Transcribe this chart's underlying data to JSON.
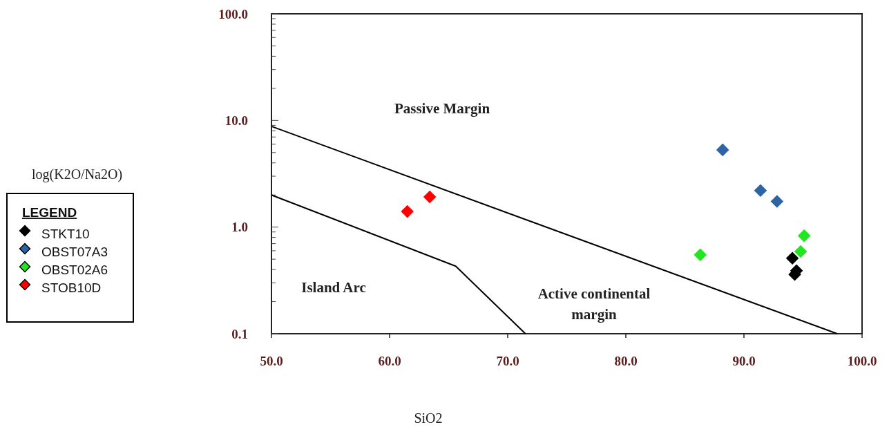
{
  "chart_data": {
    "type": "scatter",
    "xlabel": "SiO2",
    "legend_title": "LEGEND",
    "legend": "left",
    "marker": "diamond",
    "log": "y",
    "grid": false,
    "xlim": [
      50,
      100
    ],
    "xticks": [
      {
        "value": 50,
        "label": "50.0"
      },
      {
        "value": 60,
        "label": "60.0"
      },
      {
        "value": 70,
        "label": "70.0"
      },
      {
        "value": 80,
        "label": "80.0"
      },
      {
        "value": 90,
        "label": "90.0"
      },
      {
        "value": 100,
        "label": "100.0"
      }
    ],
    "ylim": [
      0.1,
      100
    ],
    "yticks": [
      {
        "value": 0.1,
        "label": "0.1"
      },
      {
        "value": 0.2,
        "label": null
      },
      {
        "value": 0.3,
        "label": null
      },
      {
        "value": 0.4,
        "label": null
      },
      {
        "value": 0.5,
        "label": null
      },
      {
        "value": 0.6,
        "label": null
      },
      {
        "value": 0.7,
        "label": null
      },
      {
        "value": 0.8,
        "label": null
      },
      {
        "value": 0.9,
        "label": null
      },
      {
        "value": 1,
        "label": "1.0"
      },
      {
        "value": 2,
        "label": null
      },
      {
        "value": 3,
        "label": null
      },
      {
        "value": 4,
        "label": null
      },
      {
        "value": 5,
        "label": null
      },
      {
        "value": 6,
        "label": null
      },
      {
        "value": 7,
        "label": null
      },
      {
        "value": 8,
        "label": null
      },
      {
        "value": 9,
        "label": null
      },
      {
        "value": 10,
        "label": "10.0"
      },
      {
        "value": 20,
        "label": null
      },
      {
        "value": 30,
        "label": null
      },
      {
        "value": 40,
        "label": null
      },
      {
        "value": 50,
        "label": null
      },
      {
        "value": 60,
        "label": null
      },
      {
        "value": 70,
        "label": null
      },
      {
        "value": 80,
        "label": null
      },
      {
        "value": 90,
        "label": null
      },
      {
        "value": 100,
        "label": "100.0"
      }
    ],
    "series": [
      {
        "name": "STKT10",
        "color": "#000000",
        "x": [
          94.1,
          94.45,
          94.3
        ],
        "values": [
          0.51,
          0.39,
          0.36
        ]
      },
      {
        "name": "OBST07A3",
        "color": "#2e63a6",
        "x": [
          88.2,
          91.4,
          92.8
        ],
        "values": [
          5.3,
          2.2,
          1.74
        ]
      },
      {
        "name": "OBST02A6",
        "color": "#22e622",
        "x": [
          86.3,
          95.1,
          94.8
        ],
        "values": [
          0.55,
          0.83,
          0.59
        ]
      },
      {
        "name": "STOB10D",
        "color": "#ff0000",
        "x": [
          61.5,
          63.4
        ],
        "values": [
          1.4,
          1.92
        ]
      },
      {
        "type": "line",
        "marker": "none",
        "color": "#000000",
        "x": [
          50,
          97.9
        ],
        "values": [
          8.8,
          0.1
        ]
      },
      {
        "type": "line",
        "marker": "none",
        "color": "#000000",
        "x": [
          50,
          65.6,
          71.5
        ],
        "values": [
          2.0,
          0.43,
          0.1
        ]
      }
    ],
    "annotations": [
      "Passive Margin",
      "Island Arc",
      "Active continental margin",
      "log(K2O/Na2O)"
    ]
  }
}
